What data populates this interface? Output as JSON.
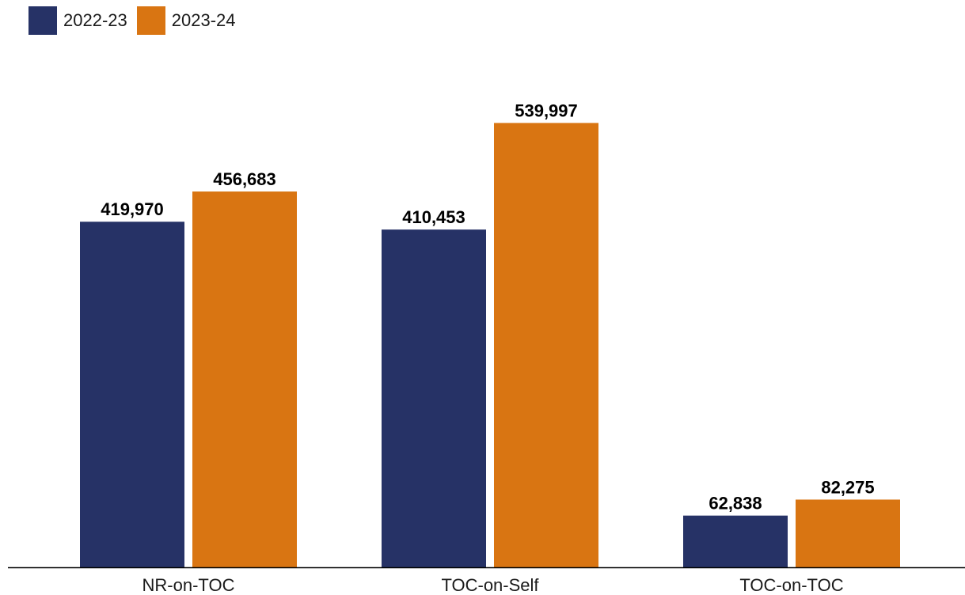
{
  "chart_data": {
    "type": "bar",
    "categories": [
      "NR-on-TOC",
      "TOC-on-Self",
      "TOC-on-TOC"
    ],
    "series": [
      {
        "name": "2022-23",
        "color": "#263266",
        "values": [
          419970,
          410453,
          62838
        ],
        "labels": [
          "419,970",
          "410,453",
          "62,838"
        ]
      },
      {
        "name": "2023-24",
        "color": "#D97512",
        "values": [
          456683,
          539997,
          82275
        ],
        "labels": [
          "456,683",
          "539,997",
          "82,275"
        ]
      }
    ],
    "title": "",
    "xlabel": "",
    "ylabel": "",
    "ylim": [
      0,
      600000
    ],
    "grid": false,
    "legend_position": "top-left",
    "data_labels": true,
    "axis_color": "#000000"
  }
}
